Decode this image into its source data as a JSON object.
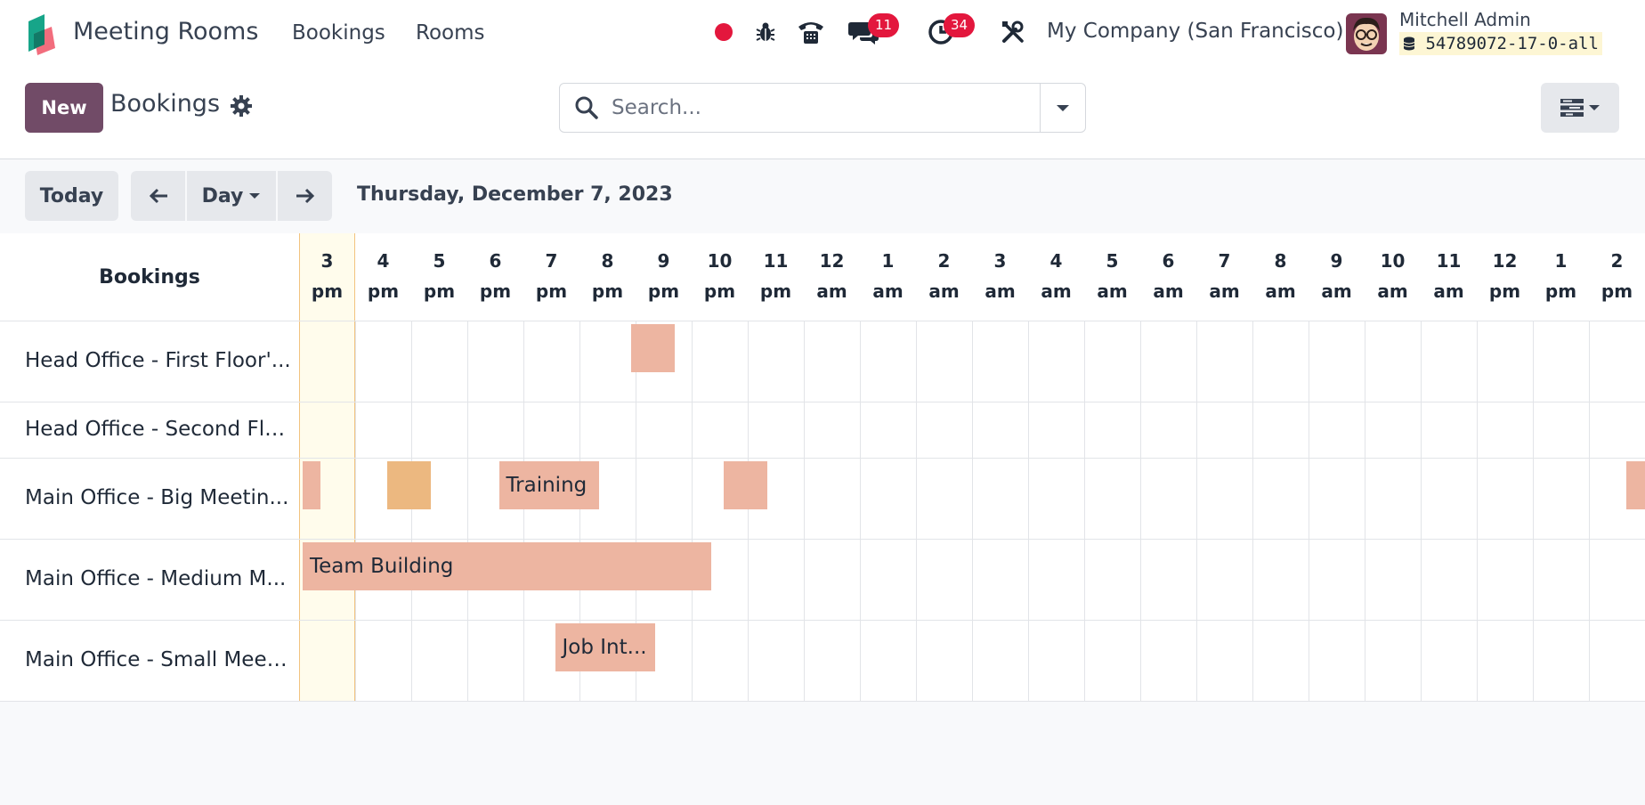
{
  "navbar": {
    "app_title": "Meeting Rooms",
    "menu": [
      "Bookings",
      "Rooms"
    ],
    "messages_count": "11",
    "activities_count": "34",
    "company": "My Company (San Francisco)",
    "user_name": "Mitchell Admin",
    "db_name": "54789072-17-0-all",
    "icons": [
      "status-dot-icon",
      "bug-icon",
      "phone-icon",
      "chat-icon",
      "clock-icon",
      "tools-icon"
    ]
  },
  "control": {
    "new_label": "New",
    "breadcrumb": "Bookings",
    "search_placeholder": "Search..."
  },
  "gantt_toolbar": {
    "today_label": "Today",
    "scale_label": "Day",
    "date_label": "Thursday, December 7, 2023"
  },
  "gantt": {
    "row_header": "Bookings",
    "columns": [
      {
        "hour": "3",
        "period": "pm"
      },
      {
        "hour": "4",
        "period": "pm"
      },
      {
        "hour": "5",
        "period": "pm"
      },
      {
        "hour": "6",
        "period": "pm"
      },
      {
        "hour": "7",
        "period": "pm"
      },
      {
        "hour": "8",
        "period": "pm"
      },
      {
        "hour": "9",
        "period": "pm"
      },
      {
        "hour": "10",
        "period": "pm"
      },
      {
        "hour": "11",
        "period": "pm"
      },
      {
        "hour": "12",
        "period": "am"
      },
      {
        "hour": "1",
        "period": "am"
      },
      {
        "hour": "2",
        "period": "am"
      },
      {
        "hour": "3",
        "period": "am"
      },
      {
        "hour": "4",
        "period": "am"
      },
      {
        "hour": "5",
        "period": "am"
      },
      {
        "hour": "6",
        "period": "am"
      },
      {
        "hour": "7",
        "period": "am"
      },
      {
        "hour": "8",
        "period": "am"
      },
      {
        "hour": "9",
        "period": "am"
      },
      {
        "hour": "10",
        "period": "am"
      },
      {
        "hour": "11",
        "period": "am"
      },
      {
        "hour": "12",
        "period": "pm"
      },
      {
        "hour": "1",
        "period": "pm"
      },
      {
        "hour": "2",
        "period": "pm"
      }
    ],
    "rows": [
      {
        "label": "Head Office - First Floor'...",
        "bookings": [
          {
            "title": "",
            "start": 5.85,
            "end": 6.7,
            "color": "#edb5a1"
          }
        ]
      },
      {
        "label": "Head Office - Second Flo...",
        "bookings": []
      },
      {
        "label": "Main Office - Big Meetin...",
        "bookings": [
          {
            "title": "",
            "start": 0.0,
            "end": 0.35,
            "color": "#edb5a1"
          },
          {
            "title": "",
            "start": 1.5,
            "end": 2.35,
            "color": "#ecb880"
          },
          {
            "title": "Training",
            "start": 3.5,
            "end": 5.35,
            "color": "#edb5a1"
          },
          {
            "title": "",
            "start": 7.5,
            "end": 8.35,
            "color": "#edb5a1"
          },
          {
            "title": "",
            "start": 23.6,
            "end": 24.0,
            "color": "#edb5a1"
          }
        ]
      },
      {
        "label": "Main Office - Medium M...",
        "bookings": [
          {
            "title": "Team Building",
            "start": 0.0,
            "end": 7.35,
            "color": "#edb5a1"
          }
        ]
      },
      {
        "label": "Main Office - Small Meet...",
        "bookings": [
          {
            "title": "Job Int...",
            "start": 4.5,
            "end": 6.35,
            "color": "#edb5a1"
          }
        ]
      }
    ]
  }
}
